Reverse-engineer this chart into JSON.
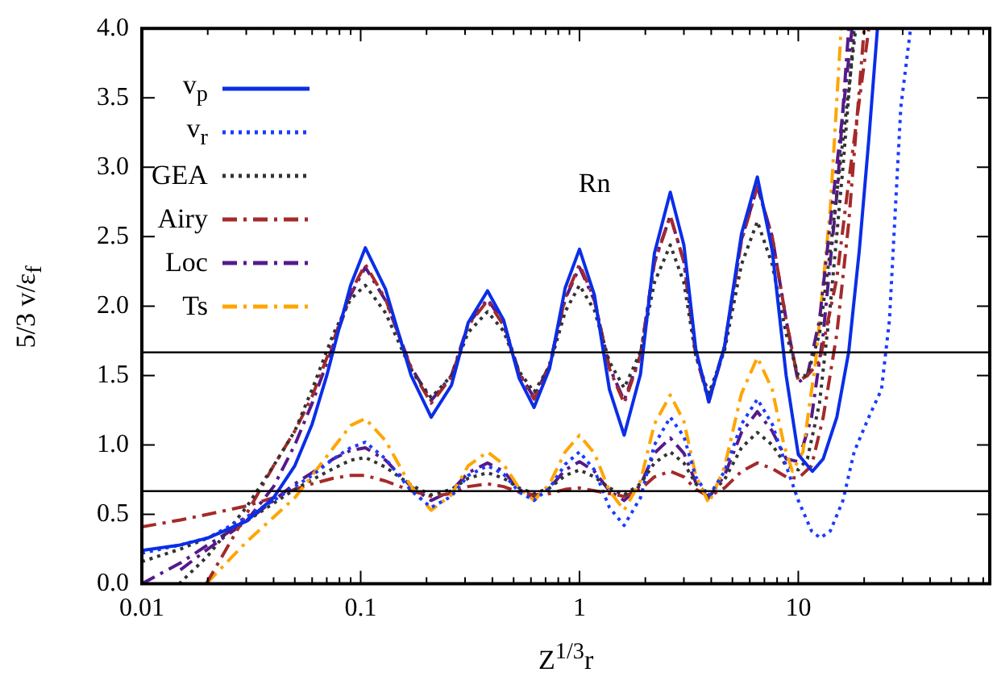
{
  "chart_data": {
    "type": "line",
    "xlabel": "Z$^{1/3}$r",
    "ylabel": "5/3 v/ε$_{f}$",
    "annotations": [
      "Rn"
    ],
    "log": "x",
    "legend": "top left",
    "xlim": [
      0.01,
      75
    ],
    "ylim": [
      0,
      4
    ],
    "xticks": [
      0.01,
      {
        "value": 0.02,
        "label": null
      },
      {
        "value": 0.03,
        "label": null
      },
      {
        "value": 0.04,
        "label": null
      },
      {
        "value": 0.05,
        "label": null
      },
      {
        "value": 0.06,
        "label": null
      },
      {
        "value": 0.07,
        "label": null
      },
      {
        "value": 0.08,
        "label": null
      },
      {
        "value": 0.09,
        "label": null
      },
      0.1,
      {
        "value": 0.2,
        "label": null
      },
      {
        "value": 0.3,
        "label": null
      },
      {
        "value": 0.4,
        "label": null
      },
      {
        "value": 0.5,
        "label": null
      },
      {
        "value": 0.6,
        "label": null
      },
      {
        "value": 0.7,
        "label": null
      },
      {
        "value": 0.8,
        "label": null
      },
      {
        "value": 0.9,
        "label": null
      },
      1,
      {
        "value": 2,
        "label": null
      },
      {
        "value": 3,
        "label": null
      },
      {
        "value": 4,
        "label": null
      },
      {
        "value": 5,
        "label": null
      },
      {
        "value": 6,
        "label": null
      },
      {
        "value": 7,
        "label": null
      },
      {
        "value": 8,
        "label": null
      },
      {
        "value": 9,
        "label": null
      },
      10,
      {
        "value": 20,
        "label": null
      },
      {
        "value": 30,
        "label": null
      },
      {
        "value": 40,
        "label": null
      },
      {
        "value": 50,
        "label": null
      },
      {
        "value": 60,
        "label": null
      },
      {
        "value": 70,
        "label": null
      }
    ],
    "yticks": [
      {
        "value": 0,
        "label": "0.0"
      },
      0.5,
      {
        "value": 1,
        "label": "1.0"
      },
      1.5,
      {
        "value": 2,
        "label": "2.0"
      },
      2.5,
      {
        "value": 3,
        "label": "3.0"
      },
      3.5,
      {
        "value": 4,
        "label": "4.0"
      }
    ],
    "ref_lines": [
      {
        "axis": "y",
        "value": 1.667,
        "color": "#000000"
      },
      {
        "axis": "y",
        "value": 0.667,
        "color": "#000000"
      }
    ],
    "series": [
      {
        "name": "v$_{p}$",
        "color": "#0a2ee8",
        "line_style": "solid",
        "x": [
          0.01,
          0.015,
          0.02,
          0.03,
          0.04,
          0.05,
          0.06,
          0.07,
          0.08,
          0.09,
          0.105,
          0.13,
          0.17,
          0.21,
          0.26,
          0.31,
          0.38,
          0.45,
          0.53,
          0.62,
          0.73,
          0.86,
          1.0,
          1.17,
          1.37,
          1.6,
          1.9,
          2.2,
          2.6,
          3.0,
          3.4,
          3.9,
          4.6,
          5.5,
          6.5,
          7.6,
          8.8,
          10,
          11.6,
          13,
          15,
          17,
          19,
          21,
          23
        ],
        "values": [
          0.24,
          0.28,
          0.33,
          0.45,
          0.62,
          0.85,
          1.15,
          1.5,
          1.85,
          2.15,
          2.42,
          2.12,
          1.5,
          1.2,
          1.43,
          1.88,
          2.11,
          1.9,
          1.48,
          1.27,
          1.55,
          2.13,
          2.41,
          2.08,
          1.4,
          1.07,
          1.51,
          2.38,
          2.82,
          2.44,
          1.69,
          1.31,
          1.71,
          2.52,
          2.93,
          2.4,
          1.5,
          0.93,
          0.81,
          0.9,
          1.2,
          1.67,
          2.4,
          3.2,
          4.0
        ]
      },
      {
        "name": "v$_{r}$",
        "color": "#1a3cff",
        "line_style": "dotted",
        "x": [
          0.01,
          0.015,
          0.02,
          0.03,
          0.04,
          0.05,
          0.06,
          0.075,
          0.09,
          0.105,
          0.13,
          0.17,
          0.21,
          0.26,
          0.31,
          0.38,
          0.45,
          0.53,
          0.62,
          0.73,
          0.86,
          1.0,
          1.17,
          1.37,
          1.6,
          1.9,
          2.2,
          2.6,
          3.0,
          3.4,
          3.9,
          4.6,
          5.5,
          6.5,
          7.6,
          8.8,
          10,
          11.5,
          12.6,
          14,
          16,
          18,
          21,
          24,
          26.1,
          29.4,
          32.6
        ],
        "values": [
          0.22,
          0.28,
          0.33,
          0.48,
          0.6,
          0.7,
          0.78,
          0.9,
          0.98,
          1.02,
          0.9,
          0.67,
          0.55,
          0.63,
          0.78,
          0.85,
          0.79,
          0.66,
          0.6,
          0.69,
          0.86,
          0.95,
          0.82,
          0.55,
          0.42,
          0.62,
          1.0,
          1.2,
          1.06,
          0.77,
          0.63,
          0.81,
          1.15,
          1.33,
          1.15,
          0.85,
          0.6,
          0.38,
          0.33,
          0.38,
          0.6,
          0.95,
          1.2,
          1.4,
          1.9,
          3.43,
          4.0
        ]
      },
      {
        "name": "GEA",
        "color": "#333333",
        "line_style": "dotted",
        "x": [
          0.0148,
          0.02,
          0.03,
          0.04,
          0.05,
          0.06,
          0.075,
          0.09,
          0.105,
          0.13,
          0.17,
          0.21,
          0.26,
          0.31,
          0.38,
          0.45,
          0.53,
          0.62,
          0.73,
          0.86,
          1.0,
          1.17,
          1.37,
          1.6,
          1.9,
          2.2,
          2.6,
          3.0,
          3.4,
          3.9,
          4.6,
          5.5,
          6.5,
          7.6,
          8.8,
          10,
          11,
          12.5,
          14,
          16,
          18.3
        ],
        "values": [
          0,
          0.2,
          0.55,
          0.85,
          1.1,
          1.4,
          1.8,
          2.05,
          2.15,
          1.95,
          1.54,
          1.34,
          1.5,
          1.81,
          1.96,
          1.82,
          1.53,
          1.38,
          1.57,
          1.96,
          2.15,
          1.97,
          1.6,
          1.41,
          1.67,
          2.17,
          2.44,
          2.17,
          1.64,
          1.37,
          1.68,
          2.3,
          2.61,
          2.3,
          1.8,
          1.5,
          1.5,
          1.8,
          2.4,
          3.2,
          4.0
        ]
      },
      {
        "name": "Airy",
        "color": "#a52a2a",
        "line_style": "dashed",
        "x": [
          0.0197,
          0.03,
          0.04,
          0.05,
          0.06,
          0.075,
          0.09,
          0.105,
          0.13,
          0.17,
          0.21,
          0.26,
          0.31,
          0.38,
          0.45,
          0.53,
          0.62,
          0.73,
          0.86,
          1.0,
          1.17,
          1.37,
          1.6,
          1.9,
          2.2,
          2.6,
          3.0,
          3.4,
          3.9,
          4.6,
          5.5,
          6.5,
          7.6,
          8.8,
          10,
          11,
          12.5,
          15,
          17,
          21
        ],
        "values": [
          0,
          0.5,
          0.85,
          1.1,
          1.35,
          1.75,
          2.1,
          2.3,
          2.05,
          1.55,
          1.3,
          1.49,
          1.86,
          2.04,
          1.86,
          1.51,
          1.33,
          1.57,
          2.06,
          2.3,
          2.05,
          1.55,
          1.3,
          1.64,
          2.31,
          2.65,
          2.32,
          1.65,
          1.31,
          1.7,
          2.47,
          2.86,
          2.5,
          1.9,
          1.46,
          1.5,
          1.6,
          2.2,
          2.9,
          4.0
        ]
      },
      {
        "name": "Loc",
        "color": "#551a8b",
        "line_style": "dashed",
        "x": [
          0.01,
          0.015,
          0.02,
          0.03,
          0.04,
          0.05,
          0.06,
          0.075,
          0.09,
          0.105,
          0.13,
          0.17,
          0.21,
          0.26,
          0.31,
          0.38,
          0.45,
          0.53,
          0.62,
          0.73,
          0.86,
          1.0,
          1.17,
          1.37,
          1.6,
          1.9,
          2.2,
          2.6,
          3.0,
          3.4,
          3.9,
          4.6,
          5.5,
          6.5,
          7.6,
          8.8,
          10,
          11,
          12.5,
          14,
          16,
          17.6
        ],
        "values": [
          0,
          0.15,
          0.28,
          0.45,
          0.7,
          1.0,
          1.3,
          1.72,
          2.08,
          2.28,
          2.04,
          1.56,
          1.32,
          1.5,
          1.87,
          2.05,
          1.88,
          1.52,
          1.34,
          1.58,
          2.05,
          2.28,
          2.04,
          1.56,
          1.32,
          1.65,
          2.32,
          2.65,
          2.32,
          1.66,
          1.33,
          1.71,
          2.48,
          2.86,
          2.5,
          1.9,
          1.45,
          1.5,
          1.9,
          2.6,
          3.4,
          4.0
        ]
      },
      {
        "name": "Ts",
        "color": "#ffa500",
        "line_style": "dashed",
        "x": [
          0.0197,
          0.03,
          0.04,
          0.05,
          0.06,
          0.075,
          0.09,
          0.105,
          0.13,
          0.17,
          0.21,
          0.26,
          0.31,
          0.38,
          0.45,
          0.53,
          0.62,
          0.73,
          0.86,
          1.0,
          1.17,
          1.37,
          1.6,
          1.9,
          2.2,
          2.6,
          3.0,
          3.4,
          3.9,
          4.6,
          5.5,
          6.5,
          7.6,
          8.6,
          9.4,
          10.5,
          12,
          14,
          15.7
        ],
        "values": [
          0,
          0.3,
          0.48,
          0.62,
          0.78,
          0.98,
          1.14,
          1.19,
          1.03,
          0.7,
          0.53,
          0.64,
          0.85,
          0.95,
          0.86,
          0.69,
          0.6,
          0.72,
          0.95,
          1.07,
          0.94,
          0.67,
          0.53,
          0.74,
          1.15,
          1.36,
          1.17,
          0.78,
          0.58,
          0.84,
          1.37,
          1.63,
          1.4,
          1.0,
          0.81,
          0.95,
          1.6,
          2.7,
          4.0
        ]
      },
      {
        "color": "#333333",
        "line_style": "dotted",
        "x": [
          0.01,
          0.015,
          0.02,
          0.03,
          0.04,
          0.05,
          0.06,
          0.075,
          0.09,
          0.105,
          0.13,
          0.17,
          0.21,
          0.26,
          0.31,
          0.38,
          0.45,
          0.53,
          0.62,
          0.73,
          0.86,
          1.0,
          1.17,
          1.37,
          1.6,
          1.9,
          2.2,
          2.6,
          3.0,
          3.4,
          3.9,
          4.6,
          5.5,
          6.5,
          7.6,
          8.8,
          10,
          11,
          12.5,
          14,
          16,
          18
        ],
        "values": [
          0.16,
          0.25,
          0.33,
          0.45,
          0.58,
          0.68,
          0.75,
          0.83,
          0.89,
          0.91,
          0.84,
          0.71,
          0.64,
          0.68,
          0.76,
          0.8,
          0.76,
          0.69,
          0.65,
          0.69,
          0.78,
          0.82,
          0.77,
          0.69,
          0.64,
          0.72,
          0.87,
          0.95,
          0.87,
          0.72,
          0.64,
          0.75,
          0.98,
          1.09,
          1.0,
          0.85,
          0.82,
          0.9,
          1.3,
          2.0,
          3.0,
          4.0
        ]
      },
      {
        "color": "#a52a2a",
        "line_style": "dashed",
        "x": [
          0.01,
          0.015,
          0.02,
          0.03,
          0.04,
          0.05,
          0.06,
          0.075,
          0.09,
          0.105,
          0.13,
          0.17,
          0.21,
          0.26,
          0.31,
          0.38,
          0.45,
          0.53,
          0.62,
          0.73,
          0.86,
          1.0,
          1.17,
          1.37,
          1.6,
          1.9,
          2.2,
          2.6,
          3.0,
          3.4,
          3.9,
          4.6,
          5.5,
          6.5,
          7.6,
          8.8,
          10,
          11.5,
          13,
          15,
          17,
          20
        ],
        "values": [
          0.41,
          0.46,
          0.5,
          0.56,
          0.62,
          0.68,
          0.72,
          0.76,
          0.78,
          0.78,
          0.74,
          0.67,
          0.63,
          0.65,
          0.7,
          0.72,
          0.7,
          0.66,
          0.64,
          0.65,
          0.68,
          0.69,
          0.67,
          0.65,
          0.63,
          0.68,
          0.77,
          0.81,
          0.77,
          0.68,
          0.63,
          0.69,
          0.81,
          0.87,
          0.83,
          0.77,
          0.76,
          0.85,
          1.2,
          1.8,
          2.6,
          4.0
        ]
      },
      {
        "color": "#551a8b",
        "line_style": "dashed",
        "x": [
          0.015,
          0.02,
          0.03,
          0.04,
          0.05,
          0.06,
          0.075,
          0.09,
          0.105,
          0.13,
          0.17,
          0.21,
          0.26,
          0.31,
          0.38,
          0.45,
          0.53,
          0.62,
          0.73,
          0.86,
          1.0,
          1.17,
          1.37,
          1.6,
          1.9,
          2.2,
          2.6,
          3.0,
          3.4,
          3.9,
          4.6,
          5.5,
          6.5,
          7.6,
          8.8,
          10,
          11.5,
          13,
          15,
          17
        ],
        "values": [
          0.1,
          0.25,
          0.45,
          0.6,
          0.72,
          0.8,
          0.9,
          0.96,
          0.98,
          0.89,
          0.7,
          0.6,
          0.67,
          0.8,
          0.87,
          0.81,
          0.68,
          0.62,
          0.69,
          0.82,
          0.88,
          0.81,
          0.67,
          0.6,
          0.71,
          0.94,
          1.05,
          0.94,
          0.73,
          0.62,
          0.78,
          1.09,
          1.24,
          1.1,
          0.9,
          0.88,
          1.2,
          1.8,
          2.8,
          4.0
        ]
      }
    ]
  }
}
